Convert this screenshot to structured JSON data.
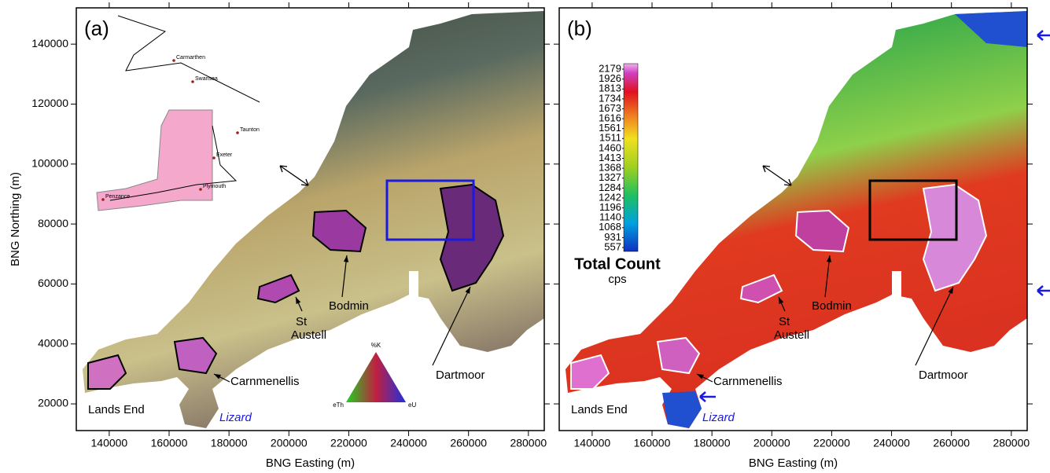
{
  "figure": {
    "ylabel": "BNG Northing (m)",
    "xlim": [
      129000,
      285300
    ],
    "ylim": [
      11100,
      152100
    ],
    "xticks": [
      140000,
      160000,
      180000,
      200000,
      220000,
      240000,
      260000,
      280000
    ],
    "yticks": [
      20000,
      40000,
      60000,
      80000,
      100000,
      120000,
      140000
    ]
  },
  "panels": [
    {
      "label": "(a)",
      "xlabel": "BNG Easting (m)",
      "annotations": {
        "lands_end": "Lands End",
        "lizard": "Lizard",
        "carnmenellis": "Carnmenellis",
        "st_austell": [
          "St",
          "Austell"
        ],
        "bodmin": "Bodmin",
        "dartmoor": "Dartmoor"
      }
    },
    {
      "label": "(b)",
      "xlabel": "BNG Easting (m)",
      "annotations": {
        "lands_end": "Lands End",
        "lizard": "Lizard",
        "carnmenellis": "Carnmenellis",
        "st_austell": [
          "St",
          "Austell"
        ],
        "bodmin": "Bodmin",
        "dartmoor": "Dartmoor"
      }
    }
  ],
  "inset": {
    "places": [
      "Carmarthen",
      "Swansea",
      "Taunton",
      "Exeter",
      "Plymouth",
      "Penzance"
    ]
  },
  "ternary": {
    "top": "%K",
    "left": "eTh",
    "right": "eU"
  },
  "colorbar": {
    "labels": [
      2179,
      1926,
      1813,
      1734,
      1673,
      1616,
      1561,
      1511,
      1460,
      1413,
      1368,
      1327,
      1284,
      1242,
      1196,
      1140,
      1068,
      931,
      557
    ],
    "title": "Total Count",
    "unit": "cps"
  }
}
